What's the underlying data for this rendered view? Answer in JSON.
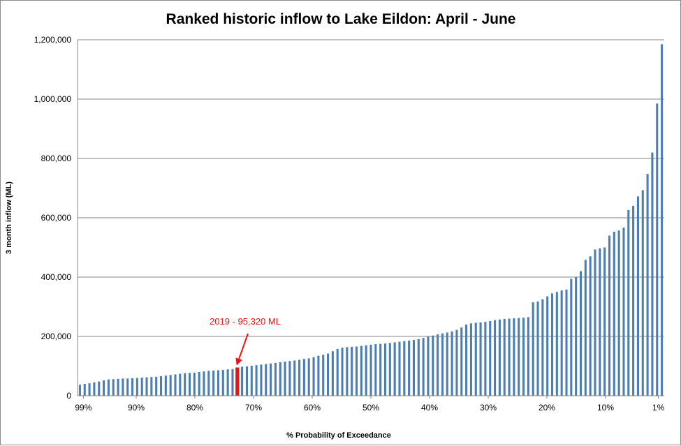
{
  "chart_data": {
    "type": "bar",
    "title": "Ranked historic inflow to Lake Eildon: April - June",
    "xlabel": "% Probability of Exceedance",
    "ylabel": "3 month inflow (ML)",
    "ylim": [
      0,
      1200000
    ],
    "yticks": [
      0,
      200000,
      400000,
      600000,
      800000,
      1000000,
      1200000
    ],
    "ytick_labels": [
      "0",
      "200,000",
      "400,000",
      "600,000",
      "800,000",
      "1,000,000",
      "1,200,000"
    ],
    "xlim": [
      100,
      0
    ],
    "xticks": [
      99,
      90,
      80,
      70,
      60,
      50,
      40,
      30,
      20,
      10,
      1
    ],
    "xtick_labels": [
      "99%",
      "90%",
      "80%",
      "70%",
      "60%",
      "50%",
      "40%",
      "30%",
      "20%",
      "10%",
      "1%"
    ],
    "grid": true,
    "bar_color": "#4a7eb4",
    "highlight_color": "#ee1111",
    "highlight_index": 33,
    "values": [
      37000,
      40000,
      42000,
      45000,
      48000,
      52000,
      55000,
      56000,
      57000,
      58000,
      58000,
      59000,
      60000,
      61000,
      62000,
      63000,
      64000,
      66000,
      68000,
      70000,
      72000,
      74000,
      76000,
      77000,
      78000,
      80000,
      82000,
      84000,
      85000,
      86000,
      87000,
      89000,
      90000,
      95320,
      98000,
      99000,
      101000,
      103000,
      105000,
      107000,
      109000,
      111000,
      113000,
      115000,
      117000,
      119000,
      121000,
      124000,
      126000,
      130000,
      135000,
      138000,
      142000,
      150000,
      158000,
      162000,
      164000,
      165000,
      166000,
      168000,
      170000,
      172000,
      174000,
      175000,
      176000,
      178000,
      180000,
      182000,
      184000,
      186000,
      188000,
      191000,
      195000,
      199000,
      203000,
      207000,
      210000,
      213000,
      217000,
      222000,
      230000,
      240000,
      244000,
      246000,
      247000,
      249000,
      252000,
      255000,
      257000,
      259000,
      260000,
      261000,
      262000,
      263000,
      265000,
      315000,
      318000,
      325000,
      335000,
      345000,
      350000,
      355000,
      358000,
      394000,
      400000,
      420000,
      458000,
      470000,
      493000,
      497000,
      500000,
      540000,
      553000,
      557000,
      567000,
      626000,
      640000,
      672000,
      693000,
      748000,
      820000,
      985000,
      1185000
    ],
    "annotation": {
      "text": "2019 - 95,320 ML",
      "value": 95320,
      "year": "2019"
    }
  }
}
